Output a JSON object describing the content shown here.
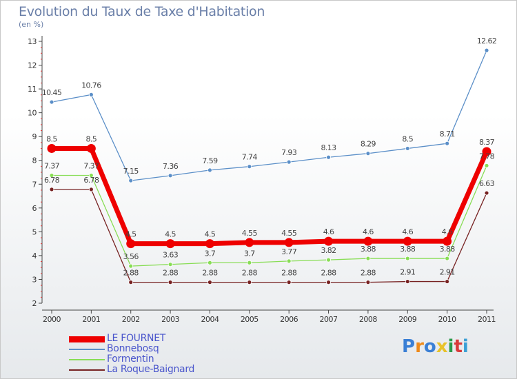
{
  "chart_data": {
    "type": "line",
    "title": "Evolution du Taux de Taxe d'Habitation",
    "subtitle": "(en %)",
    "xlabel": "",
    "ylabel": "",
    "x": [
      "2000",
      "2001",
      "2002",
      "2003",
      "2004",
      "2005",
      "2006",
      "2007",
      "2008",
      "2009",
      "2010",
      "2011"
    ],
    "ylim": [
      2,
      13
    ],
    "yticks": [
      "2",
      "3",
      "4",
      "5",
      "6",
      "7",
      "8",
      "9",
      "10",
      "11",
      "12",
      "13"
    ],
    "grid": false,
    "legend_position": "bottom-left",
    "series": [
      {
        "name": "LE FOURNET",
        "color": "#ee0000",
        "values": [
          8.5,
          8.5,
          4.5,
          4.5,
          4.5,
          4.55,
          4.55,
          4.6,
          4.6,
          4.6,
          4.6,
          8.37
        ],
        "labels": [
          "8.5",
          "8.5",
          "4.5",
          "4.5",
          "4.5",
          "4.55",
          "4.55",
          "4.6",
          "4.6",
          "4.6",
          "4.6",
          "8.37"
        ]
      },
      {
        "name": "Bonnebosq",
        "color": "#5b8fc8",
        "values": [
          10.45,
          10.76,
          7.15,
          7.36,
          7.59,
          7.74,
          7.93,
          8.13,
          8.29,
          8.5,
          8.71,
          12.62
        ],
        "labels": [
          "10.45",
          "10.76",
          "7.15",
          "7.36",
          "7.59",
          "7.74",
          "7.93",
          "8.13",
          "8.29",
          "8.5",
          "8.71",
          "12.62"
        ]
      },
      {
        "name": "Formentin",
        "color": "#88dd55",
        "values": [
          7.37,
          7.37,
          3.56,
          3.63,
          3.7,
          3.7,
          3.77,
          3.82,
          3.88,
          3.88,
          3.88,
          7.78
        ],
        "labels": [
          "7.37",
          "7.37",
          "3.56",
          "3.63",
          "3.7",
          "3.7",
          "3.77",
          "3.82",
          "3.88",
          "3.88",
          "3.88",
          "7.78"
        ]
      },
      {
        "name": "La Roque-Baignard",
        "color": "#772222",
        "values": [
          6.78,
          6.78,
          2.88,
          2.88,
          2.88,
          2.88,
          2.88,
          2.88,
          2.88,
          2.91,
          2.91,
          6.63
        ],
        "labels": [
          "6.78",
          "6.78",
          "2.88",
          "2.88",
          "2.88",
          "2.88",
          "2.88",
          "2.88",
          "2.88",
          "2.91",
          "2.91",
          "6.63"
        ]
      }
    ]
  },
  "logo": {
    "letters": [
      "P",
      "r",
      "o",
      "x",
      "i",
      "t",
      "i"
    ],
    "colors": [
      "#3a7fd5",
      "#ee8a1a",
      "#3a7fd5",
      "#e8c22a",
      "#2a9a4a",
      "#d93a3a",
      "#3a9fd5"
    ]
  }
}
